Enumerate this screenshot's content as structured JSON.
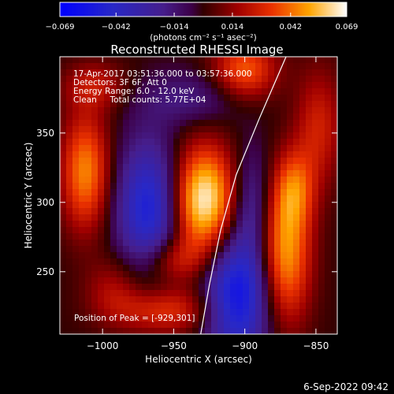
{
  "chart_data": {
    "type": "heatmap",
    "title": "Reconstructed RHESSI Image",
    "xlabel": "Heliocentric X (arcsec)",
    "ylabel": "Heliocentric Y (arcsec)",
    "xlim": [
      -1030,
      -835
    ],
    "ylim": [
      205,
      405
    ],
    "x_ticks": [
      -1000,
      -950,
      -900,
      -850
    ],
    "y_ticks": [
      250,
      300,
      350
    ],
    "colorbar": {
      "min": -0.069,
      "max": 0.069,
      "ticks": [
        -0.069,
        -0.042,
        -0.014,
        0.014,
        0.042,
        0.069
      ],
      "tick_labels": [
        "−0.069",
        "−0.042",
        "−0.014",
        "0.014",
        "0.042",
        "0.069"
      ],
      "unit_label": "(photons cm⁻² s⁻¹ asec⁻²)",
      "colormap": "blue-purple-red-yellow-white"
    },
    "info_lines": [
      "17-Apr-2017 03:51:36.000 to 03:57:36.000",
      "Detectors: 3F 6F, Att 0",
      "Energy Range: 6.0 - 12.0 keV",
      "Clean     Total counts: 5.77E+04"
    ],
    "peak_text": "Position of Peak = [-929,301]",
    "peak": [
      -929,
      301
    ],
    "limb_curve": [
      [
        -931,
        205
      ],
      [
        -925,
        240
      ],
      [
        -917,
        280
      ],
      [
        -906,
        320
      ],
      [
        -890,
        360
      ],
      [
        -871,
        405
      ]
    ],
    "components": [
      {
        "x": -929,
        "y": 301,
        "sx": 16,
        "sy": 28,
        "a": 0.069
      },
      {
        "x": -905,
        "y": 232,
        "sx": 17,
        "sy": 32,
        "a": -0.06
      },
      {
        "x": -967,
        "y": 296,
        "sx": 16,
        "sy": 34,
        "a": -0.052
      },
      {
        "x": -1012,
        "y": 322,
        "sx": 12,
        "sy": 30,
        "a": 0.046
      },
      {
        "x": -872,
        "y": 262,
        "sx": 13,
        "sy": 36,
        "a": 0.052
      },
      {
        "x": -865,
        "y": 310,
        "sx": 10,
        "sy": 20,
        "a": 0.03
      },
      {
        "x": -900,
        "y": 395,
        "sx": 16,
        "sy": 16,
        "a": 0.04
      },
      {
        "x": -955,
        "y": 222,
        "sx": 26,
        "sy": 12,
        "a": 0.032
      },
      {
        "x": -952,
        "y": 258,
        "sx": 16,
        "sy": 12,
        "a": 0.026
      },
      {
        "x": -992,
        "y": 238,
        "sx": 14,
        "sy": 16,
        "a": 0.018
      },
      {
        "x": -935,
        "y": 375,
        "sx": 28,
        "sy": 14,
        "a": -0.018
      },
      {
        "x": -895,
        "y": 300,
        "sx": 10,
        "sy": 28,
        "a": -0.025
      },
      {
        "x": -848,
        "y": 355,
        "sx": 12,
        "sy": 30,
        "a": 0.026
      },
      {
        "x": -1005,
        "y": 384,
        "sx": 16,
        "sy": 12,
        "a": 0.022
      }
    ]
  },
  "footer": {
    "timestamp": "6-Sep-2022 09:42"
  }
}
